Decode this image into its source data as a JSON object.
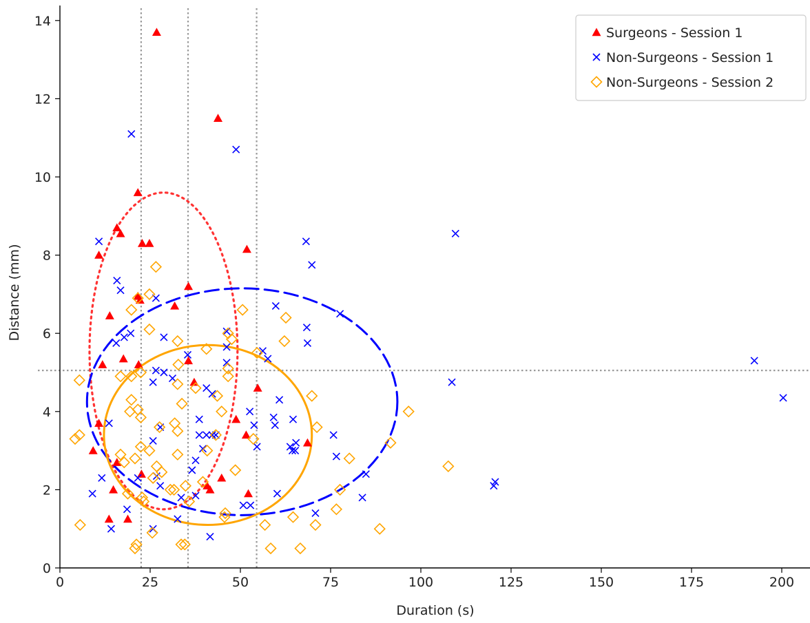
{
  "chart_data": {
    "type": "scatter",
    "xlabel": "Duration (s)",
    "ylabel": "Distance (mm)",
    "xlim": [
      0,
      208
    ],
    "ylim": [
      0,
      14.4
    ],
    "x_ticks": [
      0,
      25,
      50,
      75,
      100,
      125,
      150,
      175,
      200
    ],
    "y_ticks": [
      0,
      2,
      4,
      6,
      8,
      10,
      12,
      14
    ],
    "grid": false,
    "legend_position": "top-right",
    "reference_lines": {
      "vertical_x": [
        22.5,
        35.5,
        54.5
      ],
      "horizontal_y": [
        5.05
      ],
      "style": "dotted",
      "color": "#999999"
    },
    "series": [
      {
        "name": "Surgeons - Session 1",
        "marker": "triangle",
        "color": "#ff0000",
        "points": [
          [
            26.8,
            13.7
          ],
          [
            43.8,
            11.5
          ],
          [
            21.6,
            9.6
          ],
          [
            15.8,
            8.7
          ],
          [
            16.8,
            8.55
          ],
          [
            22.8,
            8.3
          ],
          [
            24.8,
            8.3
          ],
          [
            51.8,
            8.15
          ],
          [
            10.8,
            8.0
          ],
          [
            35.6,
            7.2
          ],
          [
            21.6,
            6.95
          ],
          [
            22.2,
            6.85
          ],
          [
            31.8,
            6.7
          ],
          [
            13.8,
            6.45
          ],
          [
            17.6,
            5.35
          ],
          [
            11.8,
            5.2
          ],
          [
            21.8,
            5.2
          ],
          [
            35.6,
            5.3
          ],
          [
            37.2,
            4.75
          ],
          [
            54.8,
            4.6
          ],
          [
            48.8,
            3.8
          ],
          [
            51.6,
            3.4
          ],
          [
            10.8,
            3.7
          ],
          [
            9.2,
            3.0
          ],
          [
            15.8,
            2.7
          ],
          [
            44.8,
            2.3
          ],
          [
            14.8,
            2.0
          ],
          [
            41.6,
            2.0
          ],
          [
            52.2,
            1.9
          ],
          [
            40.8,
            2.1
          ],
          [
            13.6,
            1.25
          ],
          [
            18.8,
            1.25
          ],
          [
            68.6,
            3.2
          ],
          [
            22.6,
            2.4
          ]
        ]
      },
      {
        "name": "Non-Surgeons - Session 1",
        "marker": "x",
        "color": "#0000ff",
        "points": [
          [
            19.8,
            11.1
          ],
          [
            48.8,
            10.7
          ],
          [
            109.6,
            8.55
          ],
          [
            10.8,
            8.35
          ],
          [
            68.2,
            8.35
          ],
          [
            69.8,
            7.75
          ],
          [
            15.8,
            7.35
          ],
          [
            16.8,
            7.1
          ],
          [
            26.6,
            6.9
          ],
          [
            59.8,
            6.7
          ],
          [
            77.6,
            6.5
          ],
          [
            68.4,
            6.15
          ],
          [
            46.2,
            6.05
          ],
          [
            28.8,
            5.9
          ],
          [
            17.8,
            5.9
          ],
          [
            19.6,
            6.0
          ],
          [
            15.6,
            5.75
          ],
          [
            68.6,
            5.75
          ],
          [
            57.6,
            5.35
          ],
          [
            56.2,
            5.55
          ],
          [
            46.2,
            5.65
          ],
          [
            35.4,
            5.45
          ],
          [
            46.2,
            5.25
          ],
          [
            26.6,
            5.05
          ],
          [
            28.8,
            5.0
          ],
          [
            31.2,
            4.85
          ],
          [
            25.8,
            4.75
          ],
          [
            40.6,
            4.6
          ],
          [
            42.2,
            4.45
          ],
          [
            60.8,
            4.3
          ],
          [
            108.6,
            4.75
          ],
          [
            192.4,
            5.3
          ],
          [
            200.4,
            4.35
          ],
          [
            52.6,
            4.0
          ],
          [
            53.8,
            3.65
          ],
          [
            59.2,
            3.85
          ],
          [
            59.6,
            3.65
          ],
          [
            64.6,
            3.8
          ],
          [
            38.6,
            3.8
          ],
          [
            13.6,
            3.7
          ],
          [
            38.6,
            3.4
          ],
          [
            40.6,
            3.4
          ],
          [
            42.2,
            3.4
          ],
          [
            43.2,
            3.4
          ],
          [
            75.8,
            3.4
          ],
          [
            63.8,
            3.1
          ],
          [
            64.4,
            3.0
          ],
          [
            65.2,
            3.0
          ],
          [
            65.4,
            3.2
          ],
          [
            54.6,
            3.1
          ],
          [
            39.6,
            3.05
          ],
          [
            27.8,
            3.6
          ],
          [
            25.8,
            3.25
          ],
          [
            37.6,
            2.75
          ],
          [
            36.6,
            2.5
          ],
          [
            76.6,
            2.85
          ],
          [
            84.8,
            2.4
          ],
          [
            11.6,
            2.3
          ],
          [
            21.6,
            2.3
          ],
          [
            26.8,
            2.35
          ],
          [
            9.0,
            1.9
          ],
          [
            27.8,
            2.1
          ],
          [
            33.6,
            1.8
          ],
          [
            37.6,
            1.85
          ],
          [
            60.2,
            1.9
          ],
          [
            50.8,
            1.6
          ],
          [
            52.8,
            1.6
          ],
          [
            18.6,
            1.5
          ],
          [
            32.6,
            1.25
          ],
          [
            120.2,
            2.1
          ],
          [
            120.6,
            2.2
          ],
          [
            83.8,
            1.8
          ],
          [
            70.8,
            1.4
          ],
          [
            14.2,
            1.0
          ],
          [
            25.8,
            1.0
          ],
          [
            41.6,
            0.8
          ]
        ]
      },
      {
        "name": "Non-Surgeons - Session 2",
        "marker": "diamond-open",
        "color": "#ffa500",
        "points": [
          [
            26.6,
            7.7
          ],
          [
            24.8,
            7.0
          ],
          [
            21.6,
            6.9
          ],
          [
            19.8,
            6.6
          ],
          [
            50.6,
            6.6
          ],
          [
            62.6,
            6.4
          ],
          [
            46.6,
            6.0
          ],
          [
            24.8,
            6.1
          ],
          [
            32.6,
            5.8
          ],
          [
            47.6,
            5.85
          ],
          [
            62.2,
            5.8
          ],
          [
            54.6,
            5.5
          ],
          [
            40.6,
            5.6
          ],
          [
            32.8,
            5.2
          ],
          [
            46.6,
            5.1
          ],
          [
            22.4,
            5.0
          ],
          [
            16.8,
            4.9
          ],
          [
            19.8,
            4.9
          ],
          [
            5.4,
            4.8
          ],
          [
            32.6,
            4.7
          ],
          [
            46.6,
            4.9
          ],
          [
            37.6,
            4.6
          ],
          [
            43.6,
            4.4
          ],
          [
            69.8,
            4.4
          ],
          [
            19.8,
            4.3
          ],
          [
            33.8,
            4.2
          ],
          [
            21.6,
            4.05
          ],
          [
            19.4,
            4.0
          ],
          [
            44.8,
            4.0
          ],
          [
            96.6,
            4.0
          ],
          [
            22.4,
            3.85
          ],
          [
            27.6,
            3.6
          ],
          [
            31.8,
            3.7
          ],
          [
            32.6,
            3.5
          ],
          [
            71.2,
            3.6
          ],
          [
            5.4,
            3.4
          ],
          [
            4.2,
            3.3
          ],
          [
            43.2,
            3.4
          ],
          [
            22.4,
            3.1
          ],
          [
            24.8,
            3.0
          ],
          [
            40.8,
            3.0
          ],
          [
            53.6,
            3.3
          ],
          [
            16.8,
            2.9
          ],
          [
            20.8,
            2.8
          ],
          [
            32.6,
            2.9
          ],
          [
            80.2,
            2.8
          ],
          [
            26.8,
            2.6
          ],
          [
            17.8,
            2.7
          ],
          [
            28.2,
            2.45
          ],
          [
            25.8,
            2.3
          ],
          [
            48.6,
            2.5
          ],
          [
            107.6,
            2.6
          ],
          [
            91.6,
            3.2
          ],
          [
            39.6,
            2.2
          ],
          [
            30.6,
            2.0
          ],
          [
            31.6,
            2.0
          ],
          [
            18.8,
            1.9
          ],
          [
            77.6,
            2.0
          ],
          [
            22.8,
            1.8
          ],
          [
            23.2,
            1.7
          ],
          [
            34.8,
            2.1
          ],
          [
            35.8,
            1.7
          ],
          [
            45.8,
            1.4
          ],
          [
            45.6,
            1.3
          ],
          [
            56.8,
            1.1
          ],
          [
            76.6,
            1.5
          ],
          [
            64.6,
            1.3
          ],
          [
            70.8,
            1.1
          ],
          [
            5.6,
            1.1
          ],
          [
            88.6,
            1.0
          ],
          [
            25.6,
            0.9
          ],
          [
            21.2,
            0.6
          ],
          [
            20.8,
            0.5
          ],
          [
            33.6,
            0.6
          ],
          [
            34.6,
            0.6
          ],
          [
            58.4,
            0.5
          ],
          [
            66.6,
            0.5
          ]
        ]
      }
    ],
    "ellipses": [
      {
        "series": "Surgeons - Session 1",
        "center": [
          28.7,
          5.55
        ],
        "semi_axes": [
          20.5,
          4.05
        ],
        "style": "dotted",
        "color": "#ff3333"
      },
      {
        "series": "Non-Surgeons - Session 1",
        "center": [
          50.5,
          4.25
        ],
        "semi_axes": [
          43.0,
          2.9
        ],
        "style": "dashed",
        "color": "#0000ff"
      },
      {
        "series": "Non-Surgeons - Session 2",
        "center": [
          41.0,
          3.4
        ],
        "semi_axes": [
          28.8,
          2.3
        ],
        "style": "solid",
        "color": "#ffa500"
      }
    ]
  }
}
